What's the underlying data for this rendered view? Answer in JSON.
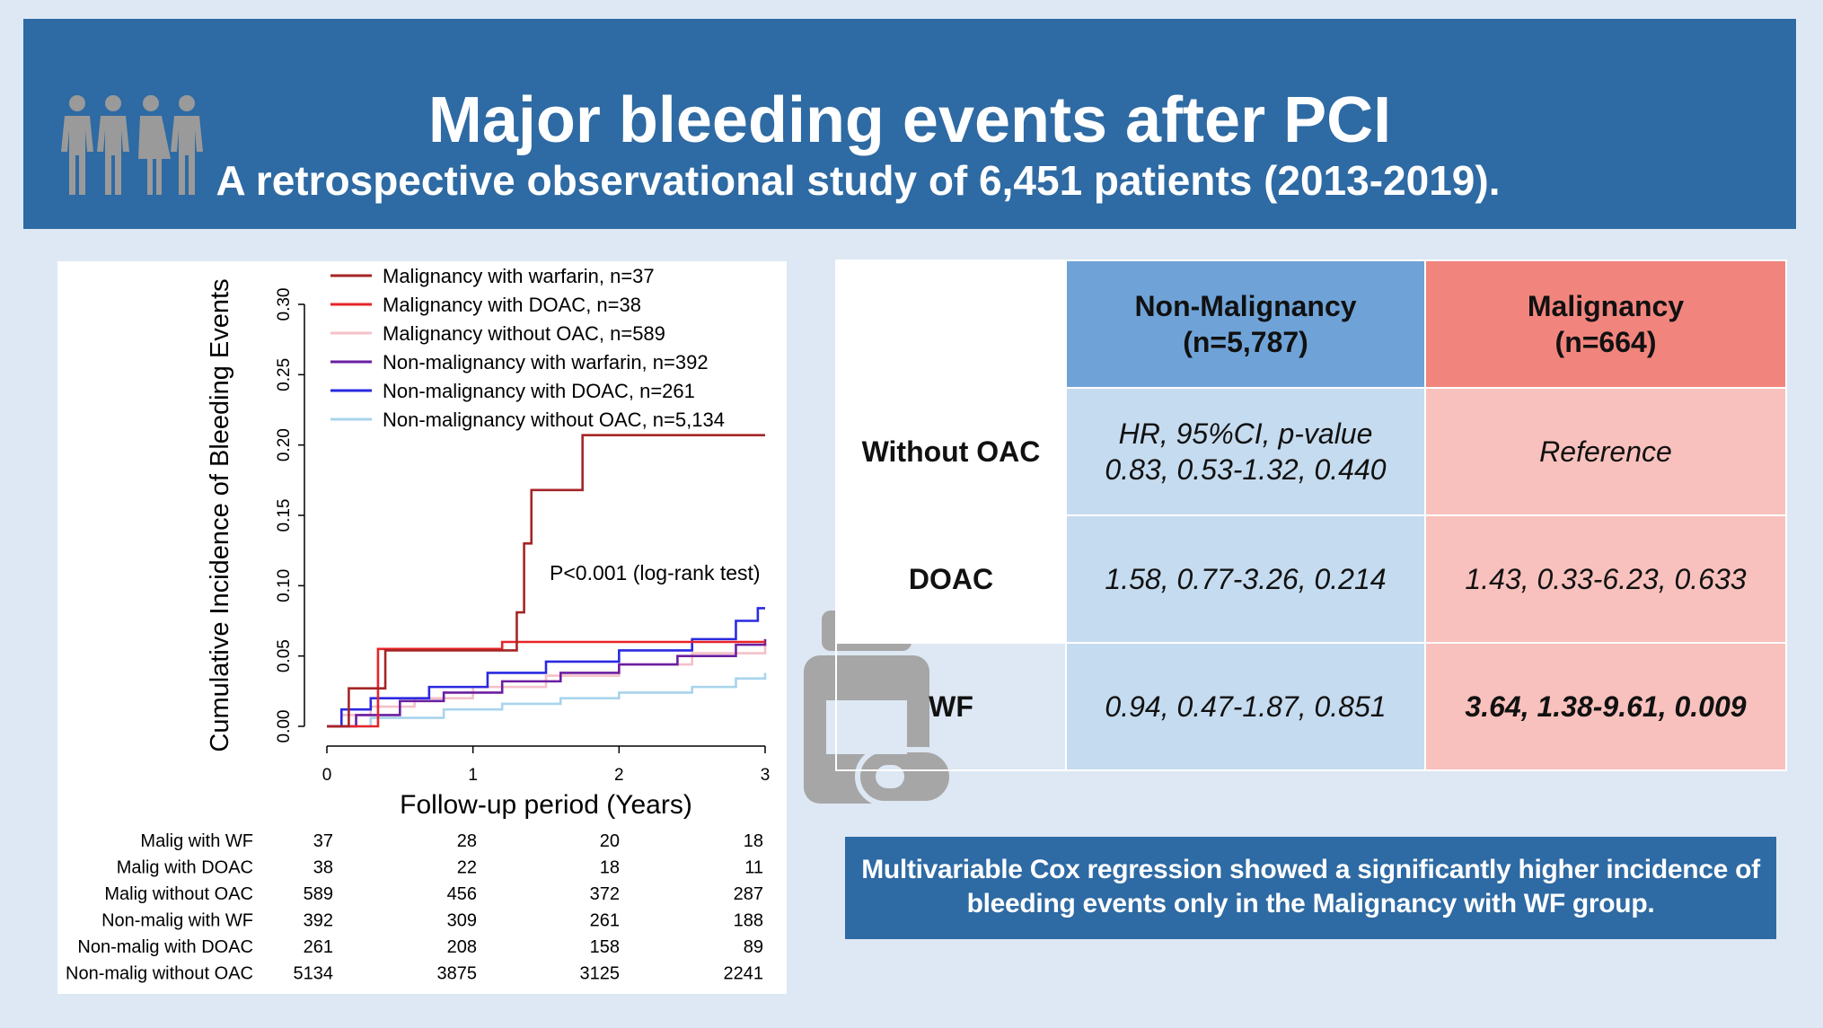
{
  "header": {
    "title": "Major bleeding events after PCI",
    "subtitle": "A retrospective observational study of 6,451 patients (2013-2019)."
  },
  "colors": {
    "header_bg": "#2e6aa3",
    "page_bg": "#dde8f4",
    "non_malignancy_header": "#6fa3d8",
    "non_malignancy_cell": "#c5dbef",
    "malignancy_header": "#f1857e",
    "malignancy_cell": "#f8c1bd",
    "significant_text": "#c00000"
  },
  "chart_data": {
    "type": "line",
    "ylabel": "Cumulative Incidence of Bleeding Events",
    "xlabel": "Follow-up period (Years)",
    "xlim": [
      0,
      3
    ],
    "ylim": [
      0,
      0.3
    ],
    "x_ticks": [
      "0",
      "1",
      "2",
      "3"
    ],
    "y_ticks": [
      "0.00",
      "0.05",
      "0.10",
      "0.15",
      "0.20",
      "0.25",
      "0.30"
    ],
    "annotation": "P<0.001 (log-rank test)",
    "legend_position": "top-left",
    "series": [
      {
        "name": "Malignancy with warfarin, n=37",
        "color": "#a52525",
        "steps": [
          [
            0,
            0
          ],
          [
            0.15,
            0.027
          ],
          [
            0.4,
            0.054
          ],
          [
            1.3,
            0.081
          ],
          [
            1.35,
            0.13
          ],
          [
            1.4,
            0.168
          ],
          [
            1.75,
            0.207
          ],
          [
            3,
            0.207
          ]
        ]
      },
      {
        "name": "Malignancy with DOAC, n=38",
        "color": "#e8242a",
        "steps": [
          [
            0,
            0
          ],
          [
            0.35,
            0.055
          ],
          [
            1.2,
            0.06
          ],
          [
            3,
            0.06
          ]
        ]
      },
      {
        "name": "Malignancy without OAC, n=589",
        "color": "#f5c0c8",
        "steps": [
          [
            0,
            0
          ],
          [
            0.1,
            0.008
          ],
          [
            0.3,
            0.014
          ],
          [
            0.6,
            0.02
          ],
          [
            1,
            0.028
          ],
          [
            1.5,
            0.036
          ],
          [
            2,
            0.044
          ],
          [
            2.5,
            0.052
          ],
          [
            3,
            0.058
          ]
        ]
      },
      {
        "name": "Non-malignancy with warfarin, n=392",
        "color": "#6b1fa0",
        "steps": [
          [
            0,
            0
          ],
          [
            0.2,
            0.008
          ],
          [
            0.5,
            0.018
          ],
          [
            0.8,
            0.024
          ],
          [
            1.2,
            0.032
          ],
          [
            1.6,
            0.038
          ],
          [
            2.0,
            0.044
          ],
          [
            2.4,
            0.05
          ],
          [
            2.8,
            0.058
          ],
          [
            3,
            0.062
          ]
        ]
      },
      {
        "name": "Non-malignancy with DOAC, n=261",
        "color": "#2a2ae0",
        "steps": [
          [
            0,
            0
          ],
          [
            0.1,
            0.012
          ],
          [
            0.3,
            0.02
          ],
          [
            0.7,
            0.028
          ],
          [
            1.1,
            0.038
          ],
          [
            1.5,
            0.046
          ],
          [
            2.0,
            0.054
          ],
          [
            2.5,
            0.062
          ],
          [
            2.8,
            0.075
          ],
          [
            2.95,
            0.084
          ],
          [
            3,
            0.084
          ]
        ]
      },
      {
        "name": "Non-malignancy without OAC, n=5,134",
        "color": "#a8d4ec",
        "steps": [
          [
            0,
            0
          ],
          [
            0.3,
            0.006
          ],
          [
            0.8,
            0.012
          ],
          [
            1.2,
            0.016
          ],
          [
            1.6,
            0.02
          ],
          [
            2.0,
            0.024
          ],
          [
            2.5,
            0.028
          ],
          [
            2.8,
            0.034
          ],
          [
            3,
            0.038
          ]
        ]
      }
    ],
    "risk_table": {
      "rows": [
        {
          "label": "Malig with WF",
          "values": [
            "37",
            "28",
            "20",
            "18"
          ]
        },
        {
          "label": "Malig with DOAC",
          "values": [
            "38",
            "22",
            "18",
            "11"
          ]
        },
        {
          "label": "Malig without OAC",
          "values": [
            "589",
            "456",
            "372",
            "287"
          ]
        },
        {
          "label": "Non-malig with WF",
          "values": [
            "392",
            "309",
            "261",
            "188"
          ]
        },
        {
          "label": "Non-malig with DOAC",
          "values": [
            "261",
            "208",
            "158",
            "89"
          ]
        },
        {
          "label": "Non-malig without OAC",
          "values": [
            "5134",
            "3875",
            "3125",
            "2241"
          ]
        }
      ]
    }
  },
  "table": {
    "col_non_malignancy": [
      "Non-Malignancy",
      "(n=5,787)"
    ],
    "col_malignancy": [
      "Malignancy",
      "(n=664)"
    ],
    "rows": [
      {
        "label": "Without OAC",
        "non_malignancy": [
          "HR, 95%CI, p-value",
          "0.83, 0.53-1.32, 0.440"
        ],
        "malignancy": "Reference"
      },
      {
        "label": "DOAC",
        "non_malignancy": [
          "1.58, 0.77-3.26, 0.214"
        ],
        "malignancy": "1.43, 0.33-6.23, 0.633"
      },
      {
        "label": "WF",
        "non_malignancy": [
          "0.94, 0.47-1.87, 0.851"
        ],
        "malignancy": "3.64, 1.38-9.61, 0.009"
      }
    ]
  },
  "conclusion": {
    "line1": "Multivariable Cox regression showed a significantly higher incidence of",
    "line2": "bleeding events only in the Malignancy with WF group."
  },
  "icons": [
    "people-icon",
    "medicine-bottle-icon"
  ]
}
